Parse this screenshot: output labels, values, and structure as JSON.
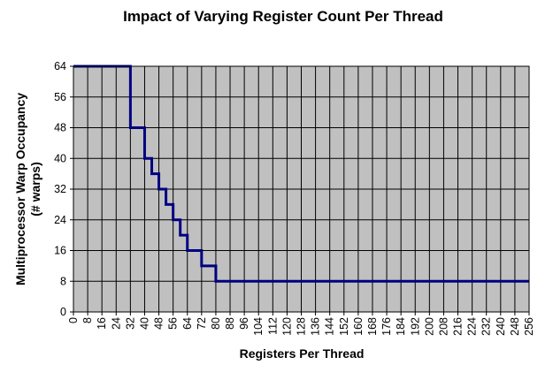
{
  "chart_data": {
    "type": "line",
    "title": "Impact of Varying Register Count Per Thread",
    "xlabel": "Registers Per Thread",
    "ylabel_line1": "Multiprocessor Warp Occupancy",
    "ylabel_line2": "(# warps)",
    "xlim": [
      0,
      256
    ],
    "ylim": [
      0,
      64
    ],
    "xticks": [
      0,
      8,
      16,
      24,
      32,
      40,
      48,
      56,
      64,
      72,
      80,
      88,
      96,
      104,
      112,
      120,
      128,
      136,
      144,
      152,
      160,
      168,
      176,
      184,
      192,
      200,
      208,
      216,
      224,
      232,
      240,
      248,
      256
    ],
    "yticks": [
      0,
      8,
      16,
      24,
      32,
      40,
      48,
      56,
      64
    ],
    "grid": true,
    "step": true,
    "series": [
      {
        "color": "#000080",
        "x": [
          0,
          32,
          32,
          40,
          40,
          44,
          44,
          48,
          48,
          52,
          52,
          56,
          56,
          60,
          60,
          64,
          64,
          72,
          72,
          80,
          80,
          96,
          96,
          128,
          128,
          168,
          168,
          256
        ],
        "y": [
          64,
          64,
          48,
          48,
          40,
          40,
          36,
          36,
          32,
          32,
          28,
          28,
          24,
          24,
          20,
          20,
          16,
          16,
          12,
          12,
          8,
          8,
          8,
          8,
          8,
          8,
          8,
          8
        ]
      }
    ]
  }
}
